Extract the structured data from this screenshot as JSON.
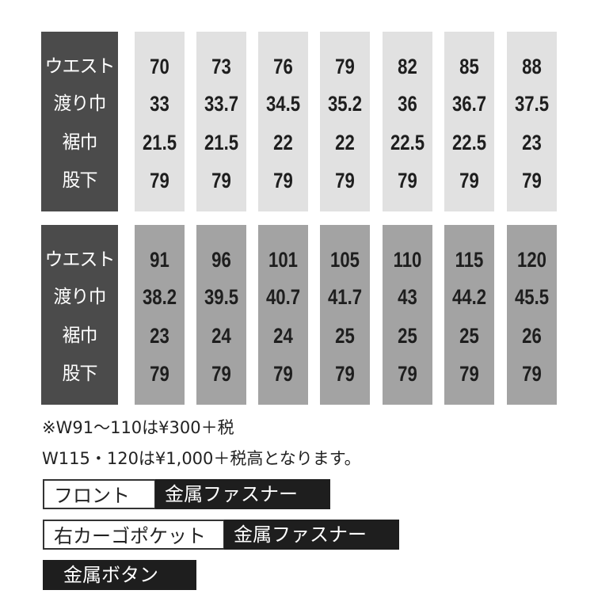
{
  "row_labels": [
    "ウエスト",
    "渡り巾",
    "裾巾",
    "股下"
  ],
  "table1": [
    [
      "70",
      "33",
      "21.5",
      "79"
    ],
    [
      "73",
      "33.7",
      "21.5",
      "79"
    ],
    [
      "76",
      "34.5",
      "22",
      "79"
    ],
    [
      "79",
      "35.2",
      "22",
      "79"
    ],
    [
      "82",
      "36",
      "22.5",
      "79"
    ],
    [
      "85",
      "36.7",
      "22.5",
      "79"
    ],
    [
      "88",
      "37.5",
      "23",
      "79"
    ]
  ],
  "table2": [
    [
      "91",
      "38.2",
      "23",
      "79"
    ],
    [
      "96",
      "39.5",
      "24",
      "79"
    ],
    [
      "101",
      "40.7",
      "24",
      "79"
    ],
    [
      "105",
      "41.7",
      "25",
      "79"
    ],
    [
      "110",
      "43",
      "25",
      "79"
    ],
    [
      "115",
      "44.2",
      "25",
      "79"
    ],
    [
      "120",
      "45.5",
      "26",
      "79"
    ]
  ],
  "notes": [
    "※W91～110は¥300＋税",
    "W115・120は¥1,000＋税高となります。"
  ],
  "specs": [
    {
      "label": "フロント",
      "value": "金属ファスナー"
    },
    {
      "label": "右カーゴポケット",
      "value": "金属ファスナー"
    },
    {
      "value": "金属ボタン"
    }
  ],
  "colors": {
    "header": "#4b4b4b",
    "table1_col": "#e1e1e1",
    "table2_col": "#a3a3a3",
    "tag_dark": "#1e1e1e"
  }
}
